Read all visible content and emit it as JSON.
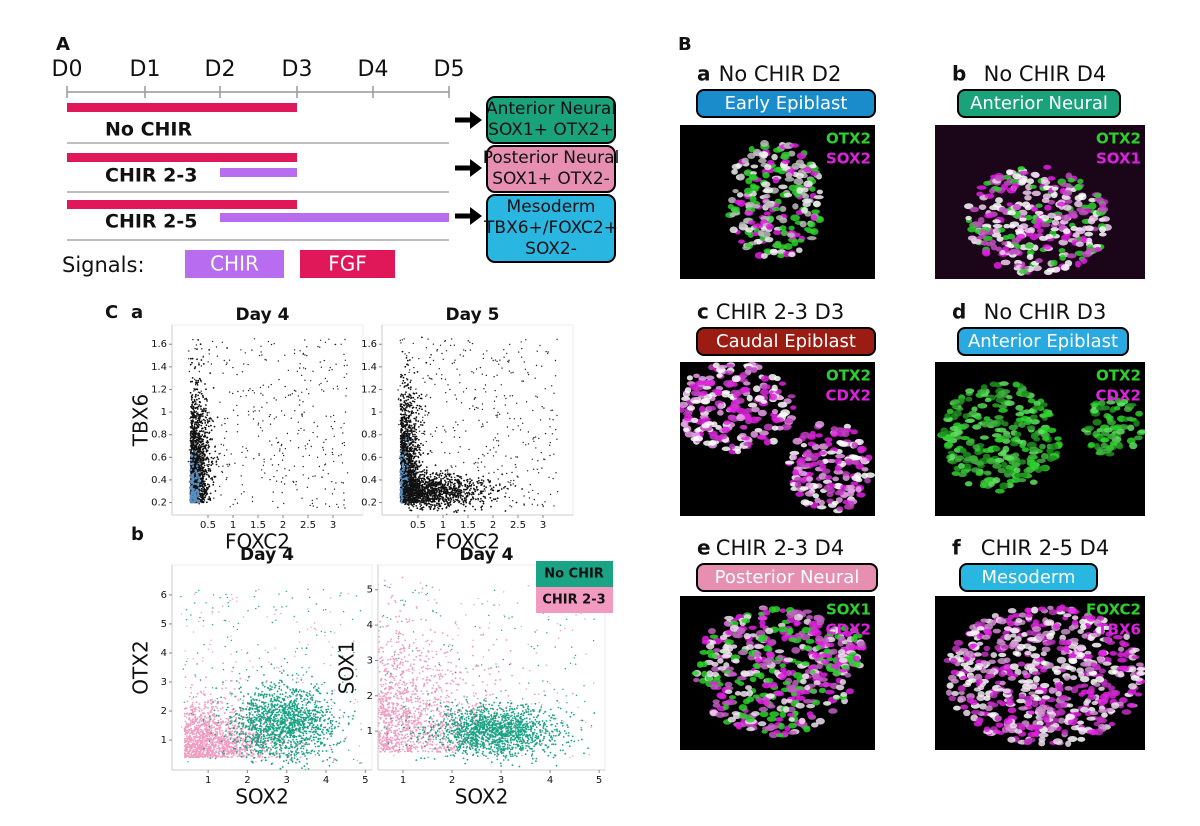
{
  "panel_a": {
    "label": "A",
    "days": [
      "D0",
      "D1",
      "D2",
      "D3",
      "D4",
      "D5"
    ],
    "conditions": [
      "No CHIR",
      "CHIR 2-3",
      "CHIR 2-5"
    ],
    "outcomes": [
      {
        "lines": [
          "Anterior Neural",
          "SOX1+ OTX2+"
        ]
      },
      {
        "lines": [
          "Posterior Neural",
          "SOX1+ OTX2-"
        ]
      },
      {
        "lines": [
          "Mesoderm",
          "TBX6+/FOXC2+",
          "SOX2-"
        ]
      }
    ],
    "signals_label": "Signals:",
    "signals": [
      "CHIR",
      "FGF"
    ]
  },
  "panel_b": {
    "label": "B",
    "images": [
      {
        "letter": "a",
        "title": "No CHIR D2",
        "tag": "Early Epiblast",
        "stains": [
          "OTX2",
          "SOX2"
        ]
      },
      {
        "letter": "b",
        "title": "No CHIR D4",
        "tag": "Anterior Neural",
        "stains": [
          "OTX2",
          "SOX1"
        ]
      },
      {
        "letter": "c",
        "title": "CHIR 2-3 D3",
        "tag": "Caudal Epiblast",
        "stains": [
          "OTX2",
          "CDX2"
        ]
      },
      {
        "letter": "d",
        "title": "No CHIR D3",
        "tag": "Anterior Epiblast",
        "stains": [
          "OTX2",
          "CDX2"
        ]
      },
      {
        "letter": "e",
        "title": "CHIR 2-3 D4",
        "tag": "Posterior Neural",
        "stains": [
          "SOX1",
          "CDX2"
        ]
      },
      {
        "letter": "f",
        "title": "CHIR 2-5 D4",
        "tag": "Mesoderm",
        "stains": [
          "FOXC2",
          "TBX6"
        ]
      }
    ]
  },
  "panel_c": {
    "label": "C",
    "a": {
      "label": "a",
      "plots": [
        {
          "title": "Day 4",
          "x_label": "FOXC2",
          "y_label": "TBX6",
          "xlim": [
            -0.22,
            3.6
          ],
          "ylim": [
            0.09,
            1.77
          ],
          "xticks": [
            0.5,
            1,
            1.5,
            2,
            2.5,
            3
          ],
          "yticks": [
            0.2,
            0.4,
            0.6,
            0.8,
            1,
            1.2,
            1.4,
            1.6
          ]
        },
        {
          "title": "Day 5",
          "x_label": "FOXC2",
          "xlim": [
            -0.22,
            3.6
          ],
          "ylim": [
            0.09,
            1.77
          ],
          "xticks": [
            0.5,
            1,
            1.5,
            2,
            2.5,
            3
          ],
          "yticks": [
            0.2,
            0.4,
            0.6,
            0.8,
            1,
            1.2,
            1.4,
            1.6
          ]
        }
      ]
    },
    "b": {
      "label": "b",
      "legend": [
        "No CHIR",
        "CHIR 2-3"
      ],
      "plots": [
        {
          "title": "Day 4",
          "x_label": "SOX2",
          "y_label": "OTX2",
          "xlim": [
            0.08,
            5.17
          ],
          "ylim": [
            -0.03,
            7.03
          ],
          "xticks": [
            1,
            2,
            3,
            4,
            5
          ],
          "yticks": [
            1,
            2,
            3,
            4,
            5,
            6
          ]
        },
        {
          "title": "Day 4",
          "x_label": "SOX2",
          "y_label": "SOX1",
          "xlim": [
            0.49,
            5.12
          ],
          "ylim": [
            -0.1,
            5.7
          ],
          "xticks": [
            1,
            2,
            3,
            4,
            5
          ],
          "yticks": [
            1,
            2,
            3,
            4,
            5
          ]
        }
      ]
    }
  }
}
